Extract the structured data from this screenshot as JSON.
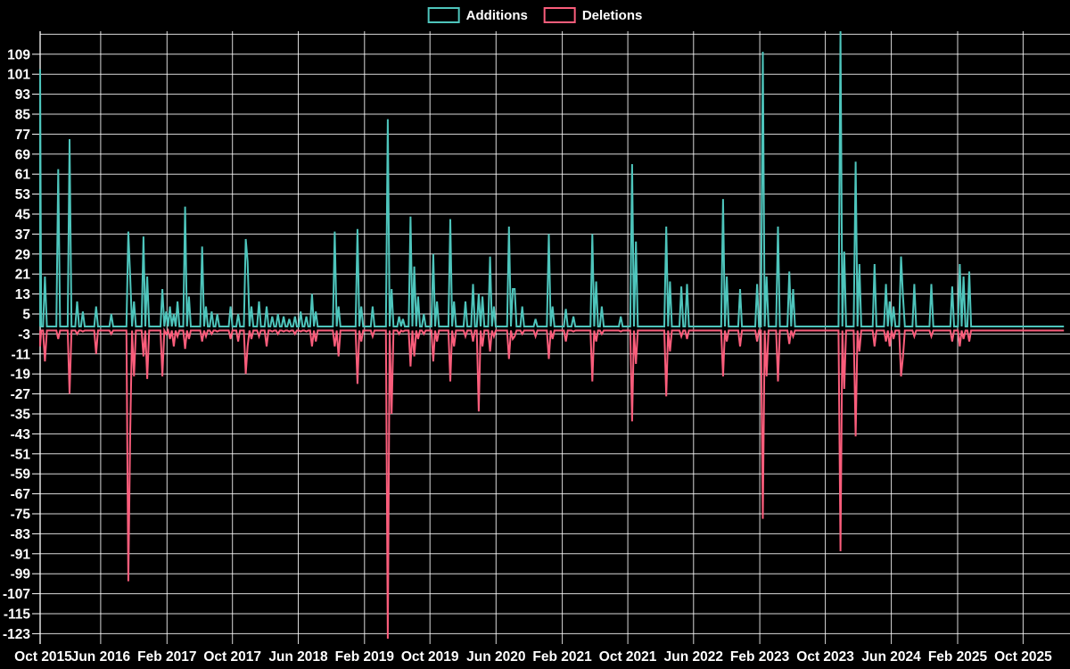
{
  "legend": {
    "additions_label": "Additions",
    "deletions_label": "Deletions"
  },
  "colors": {
    "background": "#000000",
    "grid": "#ffffff",
    "text": "#ffffff",
    "additions": "#4ec5bc",
    "deletions": "#fa5d7b"
  },
  "chart_data": {
    "type": "line",
    "title": "",
    "xlabel": "",
    "ylabel": "",
    "grid": true,
    "legend_position": "top-center",
    "series": [
      {
        "name": "Additions",
        "color_key": "additions"
      },
      {
        "name": "Deletions",
        "color_key": "deletions"
      }
    ],
    "y_ticks": [
      109,
      101,
      93,
      85,
      77,
      69,
      61,
      53,
      45,
      37,
      29,
      21,
      13,
      5,
      -3,
      -11,
      -19,
      -27,
      -35,
      -43,
      -51,
      -59,
      -67,
      -75,
      -83,
      -91,
      -99,
      -107,
      -115,
      -123
    ],
    "y_range": [
      -127,
      117
    ],
    "x_ticks": [
      {
        "label": "Oct 2015",
        "date": "2015-10-01"
      },
      {
        "label": "Jun 2016",
        "date": "2016-06-01"
      },
      {
        "label": "Feb 2017",
        "date": "2017-02-01"
      },
      {
        "label": "Oct 2017",
        "date": "2017-10-01"
      },
      {
        "label": "Jun 2018",
        "date": "2018-06-01"
      },
      {
        "label": "Feb 2019",
        "date": "2019-02-01"
      },
      {
        "label": "Oct 2019",
        "date": "2019-10-01"
      },
      {
        "label": "Jun 2020",
        "date": "2020-06-01"
      },
      {
        "label": "Feb 2021",
        "date": "2021-02-01"
      },
      {
        "label": "Oct 2021",
        "date": "2021-10-01"
      },
      {
        "label": "Jun 2022",
        "date": "2022-06-01"
      },
      {
        "label": "Feb 2023",
        "date": "2023-02-01"
      },
      {
        "label": "Oct 2023",
        "date": "2023-10-01"
      },
      {
        "label": "Jun 2024",
        "date": "2024-06-01"
      },
      {
        "label": "Feb 2025",
        "date": "2025-02-01"
      },
      {
        "label": "Oct 2025",
        "date": "2025-10-01"
      }
    ],
    "x_range_dates": [
      "2015-09-10",
      "2026-03-05"
    ],
    "sampling": "weekly",
    "quiet_week_values": {
      "additions": 0,
      "deletions": -1.6
    },
    "events": [
      [
        "2015-10-18",
        103,
        -8
      ],
      [
        "2015-11-08",
        20,
        -14
      ],
      [
        "2015-12-27",
        63,
        -5
      ],
      [
        "2016-02-07",
        75,
        -27
      ],
      [
        "2016-03-06",
        10,
        -3
      ],
      [
        "2016-03-27",
        6,
        -2
      ],
      [
        "2016-05-15",
        8,
        -11
      ],
      [
        "2016-07-10",
        5,
        -3
      ],
      [
        "2016-09-11",
        38,
        -102
      ],
      [
        "2016-09-18",
        20,
        -43
      ],
      [
        "2016-10-02",
        10,
        -20
      ],
      [
        "2016-11-06",
        36,
        -12
      ],
      [
        "2016-11-20",
        20,
        -21
      ],
      [
        "2017-01-15",
        15,
        -20
      ],
      [
        "2017-01-29",
        6,
        -3
      ],
      [
        "2017-02-12",
        8,
        -5
      ],
      [
        "2017-02-26",
        5,
        -8
      ],
      [
        "2017-03-12",
        10,
        -4
      ],
      [
        "2017-04-09",
        48,
        -9
      ],
      [
        "2017-04-23",
        12,
        -5
      ],
      [
        "2017-06-11",
        32,
        -6
      ],
      [
        "2017-06-25",
        8,
        -4
      ],
      [
        "2017-07-16",
        6,
        -3
      ],
      [
        "2017-08-06",
        5,
        -2
      ],
      [
        "2017-09-24",
        8,
        -5
      ],
      [
        "2017-10-22",
        5,
        -6
      ],
      [
        "2017-11-19",
        35,
        -19
      ],
      [
        "2017-11-26",
        26,
        -8
      ],
      [
        "2017-12-10",
        8,
        -5
      ],
      [
        "2018-01-07",
        10,
        -4
      ],
      [
        "2018-02-04",
        8,
        -8
      ],
      [
        "2018-02-25",
        4,
        -2
      ],
      [
        "2018-03-18",
        5,
        -3
      ],
      [
        "2018-04-08",
        4,
        -2
      ],
      [
        "2018-04-29",
        3,
        -2
      ],
      [
        "2018-05-20",
        4,
        -3
      ],
      [
        "2018-06-10",
        6,
        -2
      ],
      [
        "2018-07-01",
        4,
        -2
      ],
      [
        "2018-07-22",
        13,
        -8
      ],
      [
        "2018-08-05",
        6,
        -6
      ],
      [
        "2018-10-14",
        38,
        -8
      ],
      [
        "2018-10-28",
        8,
        -12
      ],
      [
        "2019-01-06",
        39,
        -23
      ],
      [
        "2019-01-20",
        8,
        -6
      ],
      [
        "2019-03-03",
        8,
        -4
      ],
      [
        "2019-04-28",
        83,
        -125
      ],
      [
        "2019-05-12",
        15,
        -35
      ],
      [
        "2019-06-09",
        4,
        -3
      ],
      [
        "2019-06-23",
        3,
        -2
      ],
      [
        "2019-07-21",
        44,
        -16
      ],
      [
        "2019-08-04",
        24,
        -12
      ],
      [
        "2019-08-18",
        12,
        -5
      ],
      [
        "2019-09-08",
        5,
        -3
      ],
      [
        "2019-10-13",
        29,
        -14
      ],
      [
        "2019-10-27",
        10,
        -6
      ],
      [
        "2019-12-15",
        43,
        -22
      ],
      [
        "2019-12-29",
        10,
        -8
      ],
      [
        "2020-02-09",
        10,
        -4
      ],
      [
        "2020-03-08",
        17,
        -6
      ],
      [
        "2020-03-29",
        13,
        -34
      ],
      [
        "2020-04-12",
        12,
        -8
      ],
      [
        "2020-05-10",
        28,
        -10
      ],
      [
        "2020-05-24",
        8,
        -4
      ],
      [
        "2020-07-19",
        40,
        -13
      ],
      [
        "2020-08-02",
        15,
        -5
      ],
      [
        "2020-08-09",
        15,
        -4
      ],
      [
        "2020-09-06",
        8,
        -3
      ],
      [
        "2020-10-25",
        3,
        -4
      ],
      [
        "2020-12-13",
        37,
        -13
      ],
      [
        "2020-12-27",
        8,
        -5
      ],
      [
        "2021-02-14",
        7,
        -6
      ],
      [
        "2021-03-14",
        4,
        -2
      ],
      [
        "2021-05-23",
        37,
        -22
      ],
      [
        "2021-06-06",
        18,
        -6
      ],
      [
        "2021-06-27",
        8,
        -3
      ],
      [
        "2021-09-05",
        4,
        -2
      ],
      [
        "2021-10-17",
        65,
        -38
      ],
      [
        "2021-10-31",
        34,
        -15
      ],
      [
        "2022-02-20",
        40,
        -28
      ],
      [
        "2022-03-06",
        18,
        -10
      ],
      [
        "2022-04-17",
        16,
        -4
      ],
      [
        "2022-05-08",
        17,
        -5
      ],
      [
        "2022-09-18",
        51,
        -20
      ],
      [
        "2022-10-02",
        20,
        -6
      ],
      [
        "2022-11-20",
        15,
        -8
      ],
      [
        "2023-01-22",
        17,
        -6
      ],
      [
        "2023-02-12",
        110,
        -77
      ],
      [
        "2023-02-26",
        20,
        -20
      ],
      [
        "2023-04-09",
        40,
        -22
      ],
      [
        "2023-05-21",
        22,
        -7
      ],
      [
        "2023-06-04",
        15,
        -4
      ],
      [
        "2023-11-26",
        119,
        -90
      ],
      [
        "2023-12-10",
        30,
        -25
      ],
      [
        "2024-01-21",
        66,
        -44
      ],
      [
        "2024-02-04",
        25,
        -10
      ],
      [
        "2024-03-31",
        25,
        -8
      ],
      [
        "2024-05-12",
        17,
        -6
      ],
      [
        "2024-05-26",
        10,
        -8
      ],
      [
        "2024-06-09",
        8,
        -5
      ],
      [
        "2024-07-07",
        28,
        -20
      ],
      [
        "2024-07-14",
        12,
        -12
      ],
      [
        "2024-08-25",
        17,
        -4
      ],
      [
        "2024-10-27",
        17,
        -4
      ],
      [
        "2025-01-12",
        16,
        -6
      ],
      [
        "2025-02-09",
        25,
        -8
      ],
      [
        "2025-02-23",
        20,
        -5
      ],
      [
        "2025-03-16",
        22,
        -6
      ]
    ]
  }
}
